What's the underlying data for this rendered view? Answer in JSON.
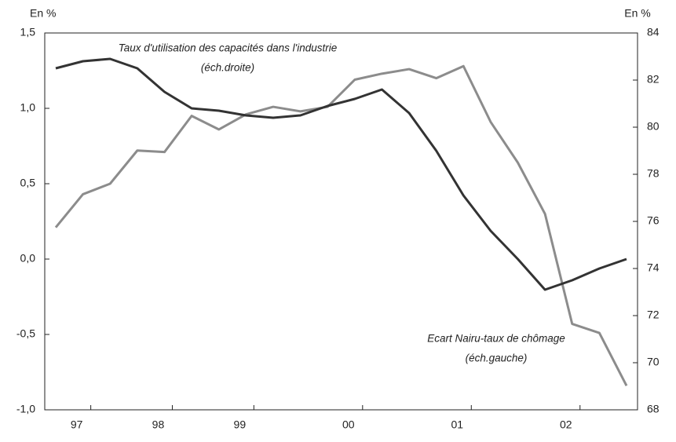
{
  "chart_data": {
    "type": "line",
    "y_label": "En %",
    "y2_label": "En %",
    "categories": [
      null,
      "97",
      null,
      null,
      "98",
      null,
      null,
      "99",
      null,
      null,
      null,
      "00",
      null,
      null,
      null,
      "01",
      null,
      null,
      null,
      "02",
      null,
      null
    ],
    "series": [
      {
        "name": "Ecart Nairu-taux de chômage",
        "axis": "y",
        "color": "#8c8c8c",
        "values": [
          0.21,
          0.43,
          0.5,
          0.72,
          0.71,
          0.95,
          0.86,
          0.96,
          1.01,
          0.98,
          1.01,
          1.19,
          1.23,
          1.26,
          1.2,
          1.28,
          0.91,
          0.64,
          0.3,
          -0.43,
          -0.49,
          -0.84
        ]
      },
      {
        "name": "Taux d'utilisation des capacités dans l'industrie",
        "axis": "y2",
        "color": "#333333",
        "values": [
          82.5,
          82.8,
          82.9,
          82.5,
          81.5,
          80.8,
          80.7,
          80.5,
          80.4,
          80.5,
          80.9,
          81.2,
          81.6,
          80.6,
          79.0,
          77.1,
          75.6,
          74.4,
          73.1,
          73.5,
          74.0,
          74.4
        ]
      }
    ],
    "annotations": [
      [
        "Taux d'utilisation des capacités dans l'industrie",
        "(éch.droite)"
      ],
      [
        "Ecart Nairu-taux de chômage",
        "(éch.gauche)"
      ]
    ],
    "ylim": [
      -1,
      1.5
    ],
    "yticks": [
      {
        "value": -1,
        "label": "-1,0"
      },
      {
        "value": -0.5,
        "label": "-0,5"
      },
      {
        "value": 0,
        "label": "0,0"
      },
      {
        "value": 0.5,
        "label": "0,5"
      },
      {
        "value": 1,
        "label": "1,0"
      },
      {
        "value": 1.5,
        "label": "1,5"
      }
    ],
    "y2lim": [
      68,
      84
    ],
    "y2ticks": [
      68,
      70,
      72,
      74,
      76,
      78,
      80,
      82,
      84
    ],
    "grid": false
  }
}
